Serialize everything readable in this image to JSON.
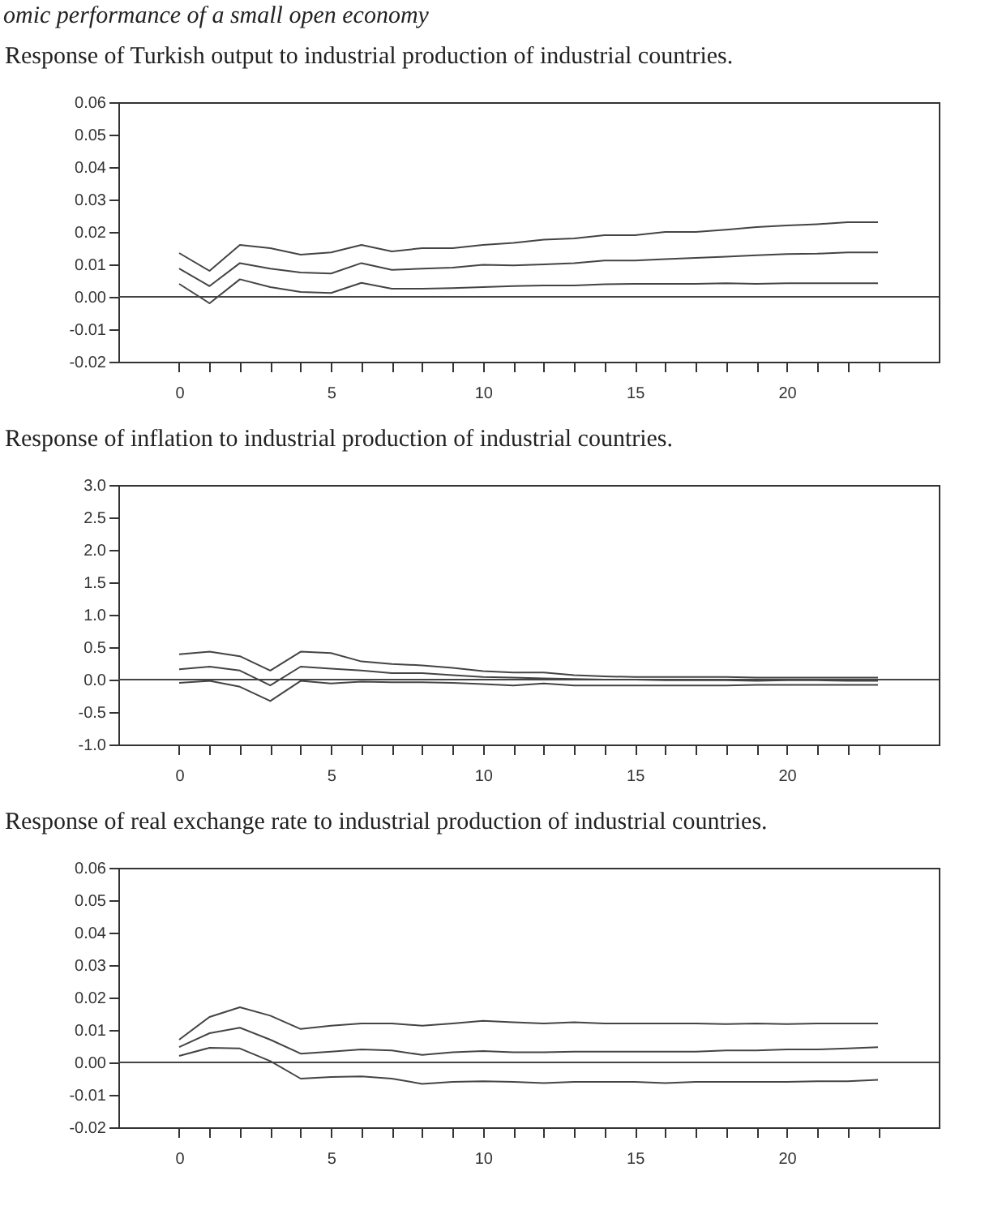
{
  "chart_data": [
    {
      "type": "line",
      "title": "Response of Turkish output to industrial production of industrial countries.",
      "annotations": [
        "omic performance of a small open economy"
      ],
      "x": [
        0,
        1,
        2,
        3,
        4,
        5,
        6,
        7,
        8,
        9,
        10,
        11,
        12,
        13,
        14,
        15,
        16,
        17,
        18,
        19,
        20,
        21,
        22,
        23
      ],
      "series": [
        {
          "color": "#444444",
          "values": [
            0.0135,
            0.008,
            0.016,
            0.015,
            0.013,
            0.0137,
            0.016,
            0.014,
            0.015,
            0.015,
            0.016,
            0.0166,
            0.0176,
            0.018,
            0.019,
            0.019,
            0.02,
            0.02,
            0.0207,
            0.0215,
            0.022,
            0.0224,
            0.023,
            0.023
          ]
        },
        {
          "color": "#444444",
          "values": [
            0.0087,
            0.0033,
            0.0104,
            0.0087,
            0.0075,
            0.0072,
            0.0104,
            0.0083,
            0.0087,
            0.009,
            0.0099,
            0.0097,
            0.01,
            0.0104,
            0.0112,
            0.0112,
            0.0116,
            0.012,
            0.0124,
            0.0128,
            0.0132,
            0.0133,
            0.0137,
            0.0137
          ]
        },
        {
          "color": "#444444",
          "values": [
            0.004,
            -0.002,
            0.0054,
            0.003,
            0.0015,
            0.0012,
            0.0043,
            0.0025,
            0.0025,
            0.0027,
            0.003,
            0.0033,
            0.0035,
            0.0035,
            0.0039,
            0.004,
            0.004,
            0.004,
            0.0042,
            0.004,
            0.0042,
            0.0042,
            0.0042,
            0.0042
          ]
        }
      ],
      "xlim": [
        -2,
        25
      ],
      "ylim": [
        -0.02,
        0.06
      ],
      "xticks": [
        0,
        {
          "value": 1,
          "label": null
        },
        {
          "value": 2,
          "label": null
        },
        {
          "value": 3,
          "label": null
        },
        {
          "value": 4,
          "label": null
        },
        5,
        {
          "value": 6,
          "label": null
        },
        {
          "value": 7,
          "label": null
        },
        {
          "value": 8,
          "label": null
        },
        {
          "value": 9,
          "label": null
        },
        10,
        {
          "value": 11,
          "label": null
        },
        {
          "value": 12,
          "label": null
        },
        {
          "value": 13,
          "label": null
        },
        {
          "value": 14,
          "label": null
        },
        15,
        {
          "value": 16,
          "label": null
        },
        {
          "value": 17,
          "label": null
        },
        {
          "value": 18,
          "label": null
        },
        {
          "value": 19,
          "label": null
        },
        20,
        {
          "value": 21,
          "label": null
        },
        {
          "value": 22,
          "label": null
        },
        {
          "value": 23,
          "label": null
        }
      ],
      "yticks": [
        {
          "value": -0.02,
          "label": "-0.02"
        },
        {
          "value": -0.01,
          "label": "-0.01"
        },
        {
          "value": 0,
          "label": "0.00"
        },
        {
          "value": 0.01,
          "label": "0.01"
        },
        {
          "value": 0.02,
          "label": "0.02"
        },
        {
          "value": 0.03,
          "label": "0.03"
        },
        {
          "value": 0.04,
          "label": "0.04"
        },
        {
          "value": 0.05,
          "label": "0.05"
        },
        {
          "value": 0.06,
          "label": "0.06"
        }
      ],
      "ref_lines": [
        {
          "axis": "y",
          "value": 0,
          "color": "#444444"
        }
      ],
      "line_style": "solid",
      "grid": false
    },
    {
      "type": "line",
      "title": "Response of inflation to industrial production of industrial countries.",
      "x": [
        0,
        1,
        2,
        3,
        4,
        5,
        6,
        7,
        8,
        9,
        10,
        11,
        12,
        13,
        14,
        15,
        16,
        17,
        18,
        19,
        20,
        21,
        22,
        23
      ],
      "series": [
        {
          "color": "#444444",
          "values": [
            0.39,
            0.43,
            0.36,
            0.14,
            0.43,
            0.41,
            0.28,
            0.24,
            0.22,
            0.18,
            0.13,
            0.11,
            0.11,
            0.07,
            0.05,
            0.04,
            0.04,
            0.04,
            0.04,
            0.03,
            0.03,
            0.03,
            0.03,
            0.03
          ]
        },
        {
          "color": "#444444",
          "values": [
            0.16,
            0.2,
            0.14,
            -0.09,
            0.2,
            0.17,
            0.14,
            0.1,
            0.1,
            0.07,
            0.04,
            0.03,
            0.02,
            0.01,
            0,
            0,
            -0.01,
            -0.01,
            -0.01,
            -0.02,
            -0.01,
            -0.01,
            -0.02,
            -0.02
          ]
        },
        {
          "color": "#444444",
          "values": [
            -0.05,
            -0.02,
            -0.11,
            -0.33,
            -0.02,
            -0.06,
            -0.03,
            -0.04,
            -0.04,
            -0.05,
            -0.07,
            -0.09,
            -0.06,
            -0.09,
            -0.09,
            -0.09,
            -0.09,
            -0.09,
            -0.09,
            -0.08,
            -0.08,
            -0.08,
            -0.08,
            -0.08
          ]
        }
      ],
      "xlim": [
        -2,
        25
      ],
      "ylim": [
        -1.0,
        3.0
      ],
      "xticks": [
        0,
        {
          "value": 1,
          "label": null
        },
        {
          "value": 2,
          "label": null
        },
        {
          "value": 3,
          "label": null
        },
        {
          "value": 4,
          "label": null
        },
        5,
        {
          "value": 6,
          "label": null
        },
        {
          "value": 7,
          "label": null
        },
        {
          "value": 8,
          "label": null
        },
        {
          "value": 9,
          "label": null
        },
        10,
        {
          "value": 11,
          "label": null
        },
        {
          "value": 12,
          "label": null
        },
        {
          "value": 13,
          "label": null
        },
        {
          "value": 14,
          "label": null
        },
        15,
        {
          "value": 16,
          "label": null
        },
        {
          "value": 17,
          "label": null
        },
        {
          "value": 18,
          "label": null
        },
        {
          "value": 19,
          "label": null
        },
        20,
        {
          "value": 21,
          "label": null
        },
        {
          "value": 22,
          "label": null
        },
        {
          "value": 23,
          "label": null
        }
      ],
      "yticks": [
        {
          "value": -1,
          "label": "-1.0"
        },
        {
          "value": -0.5,
          "label": "-0.5"
        },
        {
          "value": 0,
          "label": "0.0"
        },
        {
          "value": 0.5,
          "label": "0.5"
        },
        {
          "value": 1,
          "label": "1.0"
        },
        {
          "value": 1.5,
          "label": "1.5"
        },
        {
          "value": 2,
          "label": "2.0"
        },
        {
          "value": 2.5,
          "label": "2.5"
        },
        {
          "value": 3,
          "label": "3.0"
        }
      ],
      "ref_lines": [
        {
          "axis": "y",
          "value": 0,
          "color": "#444444"
        }
      ],
      "line_style": "solid",
      "grid": false
    },
    {
      "type": "line",
      "title": "Response of real exchange rate to industrial production of industrial countries.",
      "x": [
        0,
        1,
        2,
        3,
        4,
        5,
        6,
        7,
        8,
        9,
        10,
        11,
        12,
        13,
        14,
        15,
        16,
        17,
        18,
        19,
        20,
        21,
        22,
        23
      ],
      "series": [
        {
          "color": "#444444",
          "values": [
            0.007,
            0.014,
            0.017,
            0.0144,
            0.0103,
            0.0113,
            0.012,
            0.012,
            0.0113,
            0.012,
            0.0128,
            0.0124,
            0.012,
            0.0124,
            0.012,
            0.012,
            0.012,
            0.012,
            0.0118,
            0.012,
            0.0118,
            0.012,
            0.012,
            0.012
          ]
        },
        {
          "color": "#444444",
          "values": [
            0.0047,
            0.009,
            0.0107,
            0.007,
            0.0027,
            0.0033,
            0.004,
            0.0037,
            0.0023,
            0.0031,
            0.0035,
            0.0031,
            0.0031,
            0.0033,
            0.0033,
            0.0033,
            0.0033,
            0.0033,
            0.0037,
            0.0037,
            0.004,
            0.004,
            0.0043,
            0.0047
          ]
        },
        {
          "color": "#444444",
          "values": [
            0.002,
            0.0045,
            0.0043,
            0.0004,
            -0.005,
            -0.0045,
            -0.0043,
            -0.005,
            -0.0066,
            -0.006,
            -0.0058,
            -0.006,
            -0.0064,
            -0.006,
            -0.006,
            -0.006,
            -0.0064,
            -0.006,
            -0.006,
            -0.006,
            -0.006,
            -0.0058,
            -0.0058,
            -0.0054
          ]
        }
      ],
      "xlim": [
        -2,
        25
      ],
      "ylim": [
        -0.02,
        0.06
      ],
      "xticks": [
        0,
        {
          "value": 1,
          "label": null
        },
        {
          "value": 2,
          "label": null
        },
        {
          "value": 3,
          "label": null
        },
        {
          "value": 4,
          "label": null
        },
        5,
        {
          "value": 6,
          "label": null
        },
        {
          "value": 7,
          "label": null
        },
        {
          "value": 8,
          "label": null
        },
        {
          "value": 9,
          "label": null
        },
        10,
        {
          "value": 11,
          "label": null
        },
        {
          "value": 12,
          "label": null
        },
        {
          "value": 13,
          "label": null
        },
        {
          "value": 14,
          "label": null
        },
        15,
        {
          "value": 16,
          "label": null
        },
        {
          "value": 17,
          "label": null
        },
        {
          "value": 18,
          "label": null
        },
        {
          "value": 19,
          "label": null
        },
        20,
        {
          "value": 21,
          "label": null
        },
        {
          "value": 22,
          "label": null
        },
        {
          "value": 23,
          "label": null
        }
      ],
      "yticks": [
        {
          "value": -0.02,
          "label": "-0.02"
        },
        {
          "value": -0.01,
          "label": "-0.01"
        },
        {
          "value": 0,
          "label": "0.00"
        },
        {
          "value": 0.01,
          "label": "0.01"
        },
        {
          "value": 0.02,
          "label": "0.02"
        },
        {
          "value": 0.03,
          "label": "0.03"
        },
        {
          "value": 0.04,
          "label": "0.04"
        },
        {
          "value": 0.05,
          "label": "0.05"
        },
        {
          "value": 0.06,
          "label": "0.06"
        }
      ],
      "ref_lines": [
        {
          "axis": "y",
          "value": 0,
          "color": "#444444"
        }
      ],
      "line_style": "solid",
      "grid": false
    }
  ]
}
